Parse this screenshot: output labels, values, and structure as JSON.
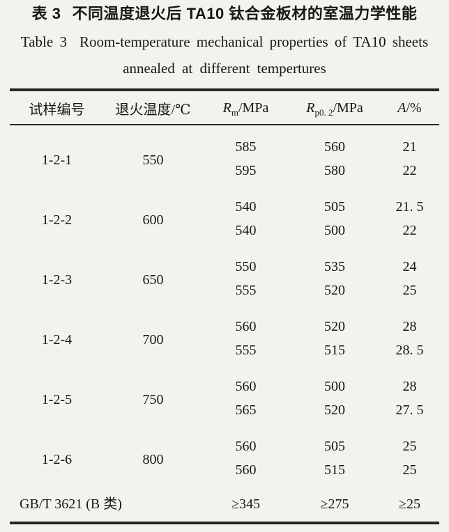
{
  "titles": {
    "zh_label": "表 3",
    "zh_text": "不同温度退火后 TA10 钛合金板材的室温力学性能",
    "en_label": "Table 3",
    "en_text": "Room-temperature mechanical properties of TA10 sheets",
    "en_line2": "annealed at different tempertures"
  },
  "table": {
    "headers": {
      "sample": "试样编号",
      "temperature": "退火温度/℃",
      "rm": {
        "base": "R",
        "sub": "m",
        "rest": "/MPa"
      },
      "rp": {
        "base": "R",
        "sub": "p0. 2",
        "rest": "/MPa"
      },
      "a": {
        "base": "A",
        "rest": "/%"
      }
    },
    "groups": [
      {
        "id": "1-2-1",
        "temp": "550",
        "rows": [
          [
            "585",
            "560",
            "21"
          ],
          [
            "595",
            "580",
            "22"
          ]
        ]
      },
      {
        "id": "1-2-2",
        "temp": "600",
        "rows": [
          [
            "540",
            "505",
            "21. 5"
          ],
          [
            "540",
            "500",
            "22"
          ]
        ]
      },
      {
        "id": "1-2-3",
        "temp": "650",
        "rows": [
          [
            "550",
            "535",
            "24"
          ],
          [
            "555",
            "520",
            "25"
          ]
        ]
      },
      {
        "id": "1-2-4",
        "temp": "700",
        "rows": [
          [
            "560",
            "520",
            "28"
          ],
          [
            "555",
            "515",
            "28. 5"
          ]
        ]
      },
      {
        "id": "1-2-5",
        "temp": "750",
        "rows": [
          [
            "560",
            "500",
            "28"
          ],
          [
            "565",
            "520",
            "27. 5"
          ]
        ]
      },
      {
        "id": "1-2-6",
        "temp": "800",
        "rows": [
          [
            "560",
            "505",
            "25"
          ],
          [
            "560",
            "515",
            "25"
          ]
        ]
      }
    ],
    "footer": {
      "label": "GB/T 3621 (B 类)",
      "rm": "≥345",
      "rp": "≥275",
      "a": "≥25"
    }
  },
  "chart_data": {
    "type": "table",
    "title": "表 3 不同温度退火后 TA10 钛合金板材的室温力学性能 / Table 3 Room-temperature mechanical properties of TA10 sheets annealed at different tempertures",
    "columns": [
      "试样编号",
      "退火温度/℃",
      "Rm/MPa",
      "Rp0.2/MPa",
      "A/%"
    ],
    "rows": [
      [
        "1-2-1",
        550,
        585,
        560,
        21
      ],
      [
        "1-2-1",
        550,
        595,
        580,
        22
      ],
      [
        "1-2-2",
        600,
        540,
        505,
        21.5
      ],
      [
        "1-2-2",
        600,
        540,
        500,
        22
      ],
      [
        "1-2-3",
        650,
        550,
        535,
        24
      ],
      [
        "1-2-3",
        650,
        555,
        520,
        25
      ],
      [
        "1-2-4",
        700,
        560,
        520,
        28
      ],
      [
        "1-2-4",
        700,
        555,
        515,
        28.5
      ],
      [
        "1-2-5",
        750,
        560,
        500,
        28
      ],
      [
        "1-2-5",
        750,
        565,
        520,
        27.5
      ],
      [
        "1-2-6",
        800,
        560,
        505,
        25
      ],
      [
        "1-2-6",
        800,
        560,
        515,
        25
      ],
      [
        "GB/T 3621 (B 类)",
        null,
        "≥345",
        "≥275",
        "≥25"
      ]
    ]
  }
}
